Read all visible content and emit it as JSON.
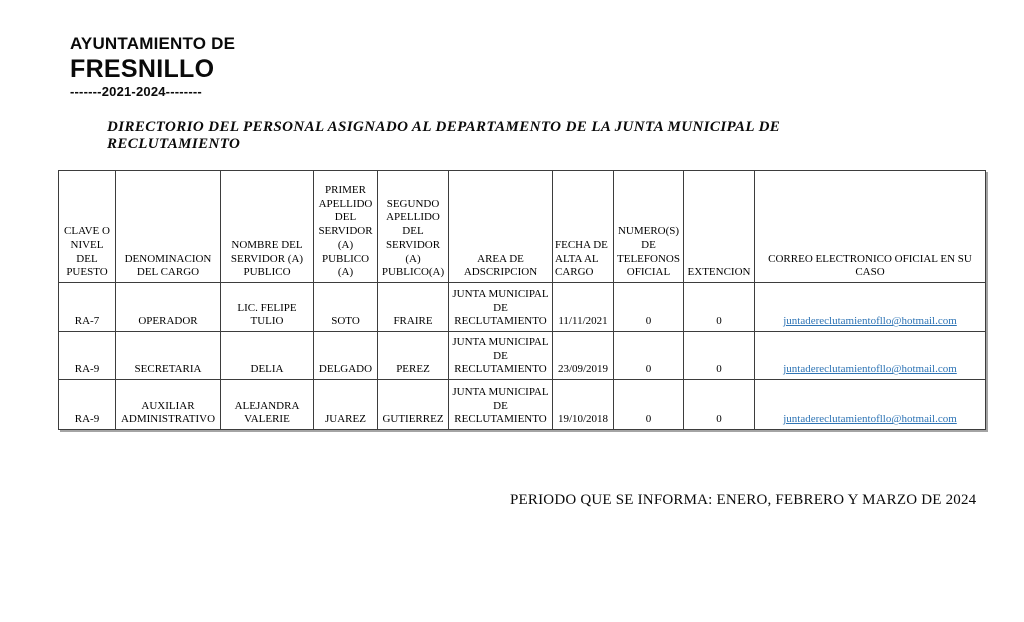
{
  "logo": {
    "line1": "AYUNTAMIENTO DE",
    "line2": "FRESNILLO",
    "line3": "-------2021-2024--------"
  },
  "title": "DIRECTORIO DEL PERSONAL ASIGNADO AL DEPARTAMENTO DE LA JUNTA MUNICIPAL DE  RECLUTAMIENTO",
  "table": {
    "columns": [
      "CLAVE O NIVEL DEL PUESTO",
      "DENOMINACION DEL CARGO",
      "NOMBRE DEL  SERVIDOR (A) PUBLICO",
      "PRIMER APELLIDO DEL SERVIDOR (A) PUBLICO (A)",
      "SEGUNDO APELLIDO DEL SERVIDOR (A) PUBLICO(A)",
      "AREA DE ADSCRIPCION",
      "FECHA DE ALTA AL CARGO",
      "NUMERO(S) DE TELEFONOS OFICIAL",
      "EXTENCION",
      "CORREO ELECTRONICO OFICIAL EN SU CASO"
    ],
    "rows": [
      [
        "RA-7",
        "OPERADOR",
        "LIC. FELIPE TULIO",
        "SOTO",
        "FRAIRE",
        "JUNTA MUNICIPAL DE RECLUTAMIENTO",
        "11/11/2021",
        "0",
        "0",
        "juntadereclutamientofllo@hotmail.com"
      ],
      [
        "RA-9",
        "SECRETARIA",
        "DELIA",
        "DELGADO",
        "PEREZ",
        "JUNTA MUNICIPAL DE RECLUTAMIENTO",
        "23/09/2019",
        "0",
        "0",
        "juntadereclutamientofllo@hotmail.com"
      ],
      [
        "RA-9",
        "AUXILIAR ADMINISTRATIVO",
        "ALEJANDRA VALERIE",
        "JUAREZ",
        "GUTIERREZ",
        "JUNTA MUNICIPAL DE RECLUTAMIENTO",
        "19/10/2018",
        "0",
        "0",
        "juntadereclutamientofllo@hotmail.com"
      ]
    ],
    "email_column_index": 9,
    "link_color": "#2E74B5"
  },
  "footer": "PERIODO QUE SE INFORMA: ENERO, FEBRERO Y MARZO DE 2024"
}
